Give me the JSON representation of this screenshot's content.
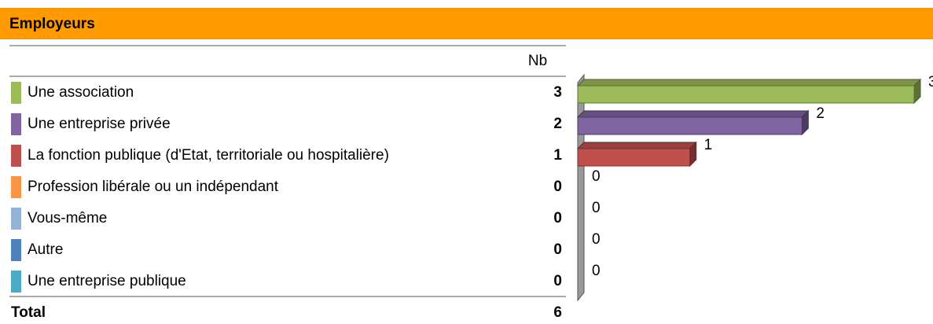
{
  "chart_data": {
    "type": "bar",
    "title": "Employeurs",
    "column_label": "Nb",
    "categories": [
      "Une association",
      "Une entreprise privée",
      "La fonction publique (d'Etat, territoriale ou hospitalière)",
      "Profession libérale ou un indépendant",
      "Vous-même",
      "Autre",
      "Une entreprise publique"
    ],
    "values": [
      3,
      2,
      1,
      0,
      0,
      0,
      0
    ],
    "colors": [
      "#9bbb59",
      "#8064a2",
      "#c0504d",
      "#f79646",
      "#95b3d7",
      "#4f81bd",
      "#4bacc6"
    ],
    "xlim": [
      0,
      3
    ],
    "total_label": "Total",
    "total": 6
  }
}
